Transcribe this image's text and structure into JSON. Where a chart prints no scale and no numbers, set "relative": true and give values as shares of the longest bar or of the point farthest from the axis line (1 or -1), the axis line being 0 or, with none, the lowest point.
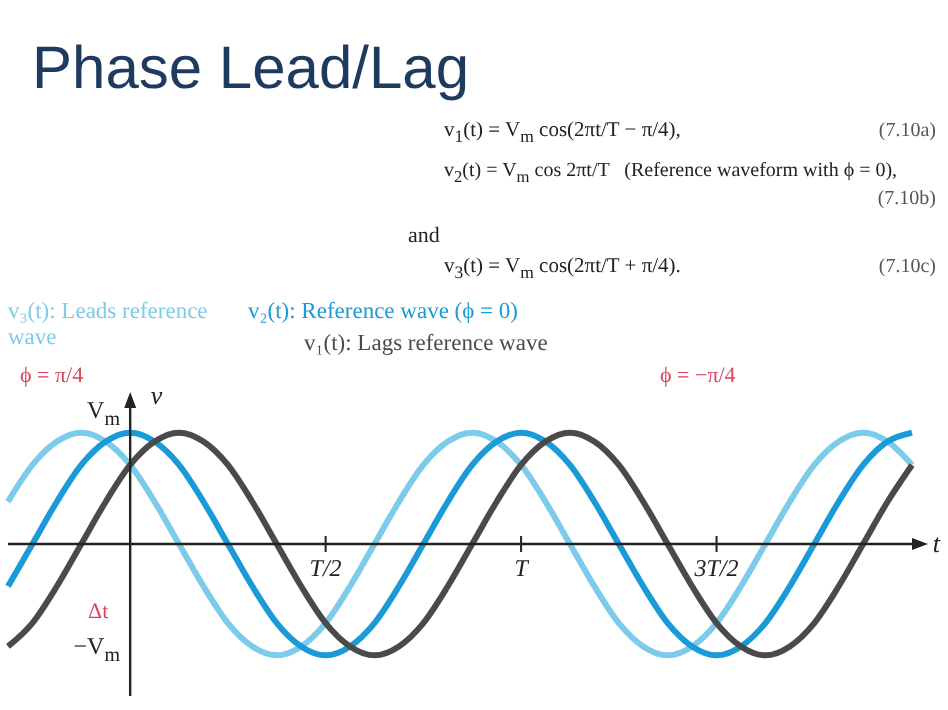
{
  "chart_data": {
    "type": "line",
    "title": "Phase Lead/Lag",
    "xlabel": "t",
    "ylabel": "v",
    "relative": true,
    "categories": [
      null,
      null,
      null,
      null,
      null,
      null,
      null,
      null,
      null,
      null,
      null,
      null,
      null,
      "T/2",
      null,
      null,
      null,
      null,
      null,
      null,
      null,
      "T",
      null,
      null,
      null,
      null,
      null,
      null,
      null,
      "3T/2",
      null,
      null,
      null,
      null,
      null,
      null,
      null,
      null
    ],
    "series": [
      {
        "name": "v₃(t): Leads reference wave",
        "color": "#7ccbea",
        "values": [
          0.38,
          0.71,
          0.92,
          1,
          0.92,
          0.71,
          0.38,
          0,
          -0.38,
          -0.71,
          -0.92,
          -1,
          -0.92,
          -0.71,
          -0.38,
          0,
          0.38,
          0.71,
          0.92,
          1,
          0.92,
          0.71,
          0.38,
          0,
          -0.38,
          -0.71,
          -0.92,
          -1,
          -0.92,
          -0.71,
          -0.38,
          0,
          0.38,
          0.71,
          0.92,
          1,
          0.92,
          0.71
        ]
      },
      {
        "name": "v₂(t): Reference wave (ϕ = 0)",
        "color": "#1a9ad6",
        "values": [
          -0.38,
          0,
          0.38,
          0.71,
          0.92,
          1,
          0.92,
          0.71,
          0.38,
          0,
          -0.38,
          -0.71,
          -0.92,
          -1,
          -0.92,
          -0.71,
          -0.38,
          0,
          0.38,
          0.71,
          0.92,
          1,
          0.92,
          0.71,
          0.38,
          0,
          -0.38,
          -0.71,
          -0.92,
          -1,
          -0.92,
          -0.71,
          -0.38,
          0,
          0.38,
          0.71,
          0.92,
          1
        ]
      },
      {
        "name": "v₁(t): Lags reference wave",
        "color": "#4a4a4a",
        "values": [
          -0.92,
          -0.71,
          -0.38,
          0,
          0.38,
          0.71,
          0.92,
          1,
          0.92,
          0.71,
          0.38,
          0,
          -0.38,
          -0.71,
          -0.92,
          -1,
          -0.92,
          -0.71,
          -0.38,
          0,
          0.38,
          0.71,
          0.92,
          1,
          0.92,
          0.71,
          0.38,
          0,
          -0.38,
          -0.71,
          -0.92,
          -1,
          -0.92,
          -0.71,
          -0.38,
          0,
          0.38,
          0.71
        ]
      }
    ],
    "line_style": "solid",
    "annotations": [
      "v$_{1}$(t) = V$_{m}$ cos(2πt/T − π/4),",
      "(7.10a)",
      "v$_{2}$(t) = V$_{m}$ cos 2πt/T   (Reference waveform with ϕ = 0),",
      "(7.10b)",
      "and",
      "v$_{3}$(t) = V$_{m}$ cos(2πt/T + π/4).",
      "(7.10c)",
      "ϕ = π/4",
      "ϕ = −π/4",
      "Δt",
      "V$_{m}$",
      "−V$_{m}$"
    ]
  }
}
